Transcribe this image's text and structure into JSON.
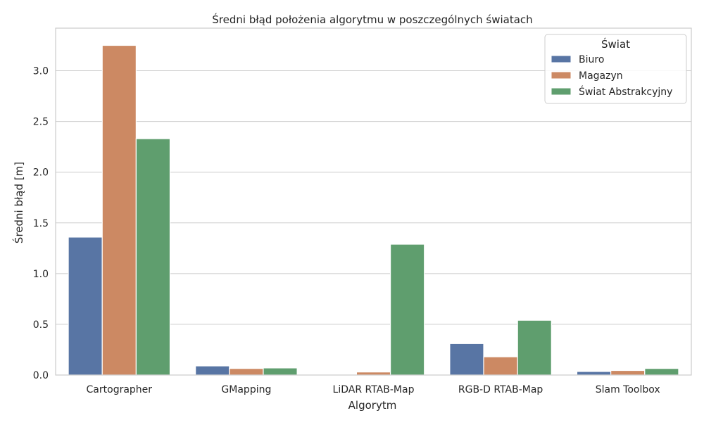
{
  "chart_data": {
    "type": "bar",
    "title": "Średni błąd położenia algorytmu w poszczególnych światach",
    "xlabel": "Algorytm",
    "ylabel": "Średni błąd [m]",
    "ylim": [
      0,
      3.42
    ],
    "yticks": [
      0.0,
      0.5,
      1.0,
      1.5,
      2.0,
      2.5,
      3.0
    ],
    "ytick_labels": [
      "0.0",
      "0.5",
      "1.0",
      "1.5",
      "2.0",
      "2.5",
      "3.0"
    ],
    "grid": true,
    "legend": {
      "title": "Świat",
      "position": "top-right"
    },
    "categories": [
      "Cartographer",
      "GMapping",
      "LiDAR RTAB-Map",
      "RGB-D RTAB-Map",
      "Slam Toolbox"
    ],
    "series": [
      {
        "name": "Biuro",
        "color": "#5875a4",
        "values": [
          1.36,
          0.09,
          0.0,
          0.31,
          0.035
        ]
      },
      {
        "name": "Magazyn",
        "color": "#cc8963",
        "values": [
          3.25,
          0.065,
          0.03,
          0.18,
          0.045
        ]
      },
      {
        "name": "Świat Abstrakcyjny",
        "color": "#5f9e6e",
        "values": [
          2.33,
          0.07,
          1.29,
          0.54,
          0.065
        ]
      }
    ]
  }
}
